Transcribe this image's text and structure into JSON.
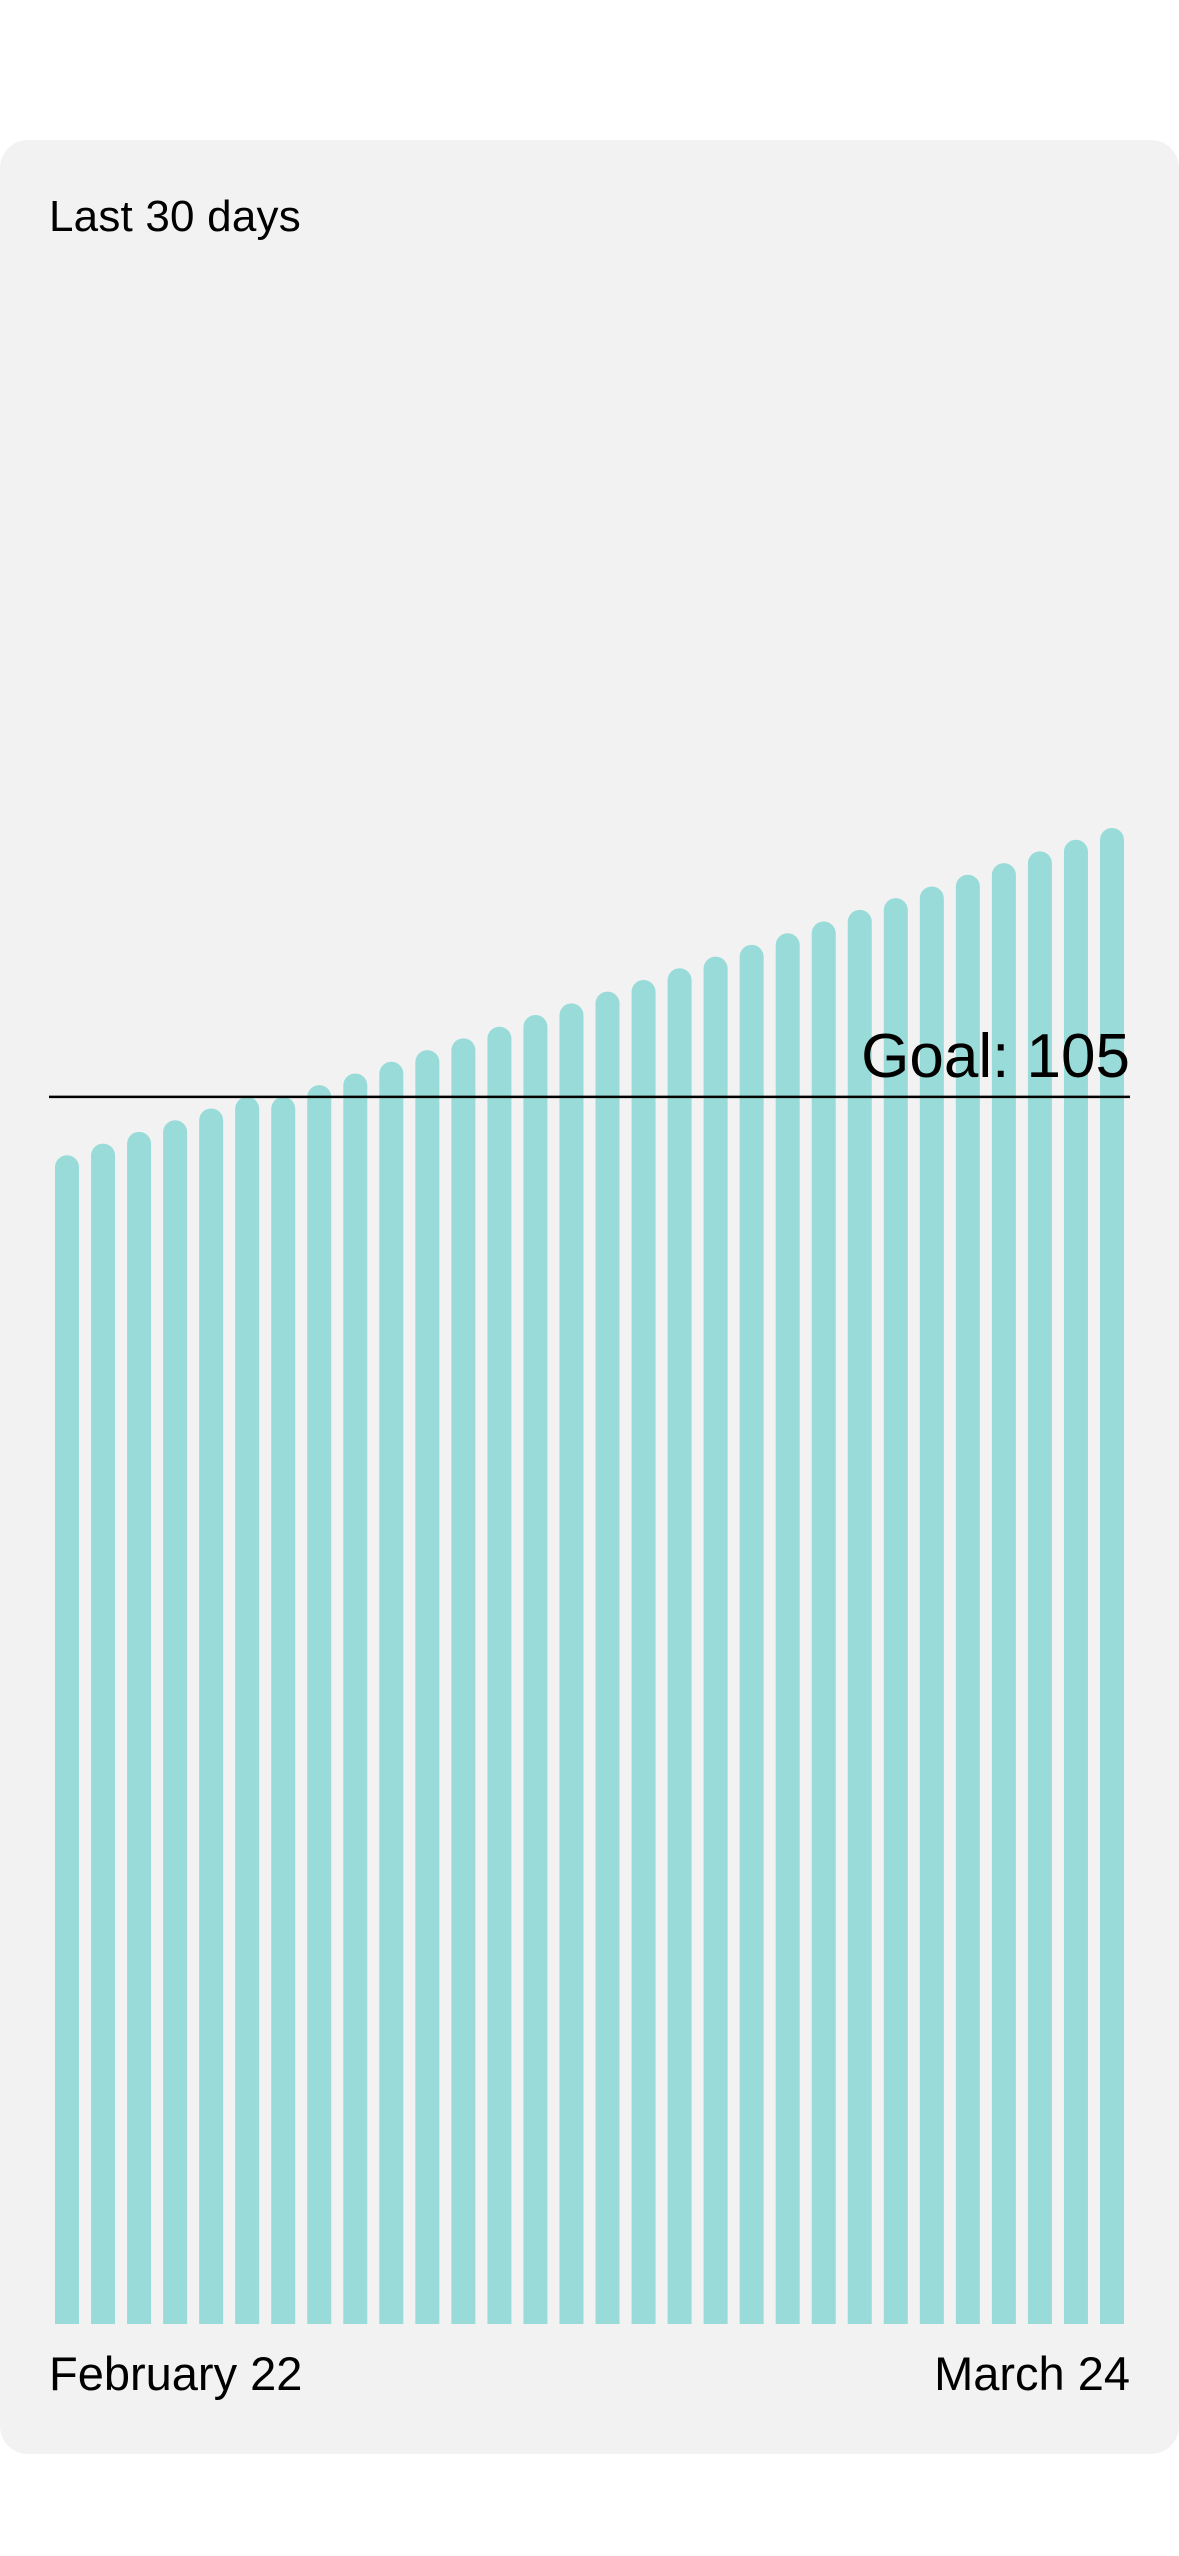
{
  "card": {
    "title": "Last 30 days"
  },
  "chart_data": {
    "type": "bar",
    "title": "Last 30 days",
    "x_start_label": "February 22",
    "x_end_label": "March 24",
    "values": [
      100,
      101,
      102,
      103,
      104,
      105,
      105,
      106,
      107,
      108,
      109,
      110,
      111,
      112,
      113,
      114,
      115,
      116,
      117,
      118,
      119,
      120,
      121,
      122,
      123,
      124,
      125,
      126,
      127,
      128
    ],
    "ylim": [
      0,
      160
    ],
    "goal": {
      "value": 105,
      "label": "Goal: 105"
    },
    "bar_color": "#98dbd8",
    "goal_line_color": "#000000",
    "grid": false,
    "legend": "none"
  },
  "colors": {
    "card_background": "#f2f2f2",
    "page_background": "#ffffff",
    "text": "#000000"
  }
}
